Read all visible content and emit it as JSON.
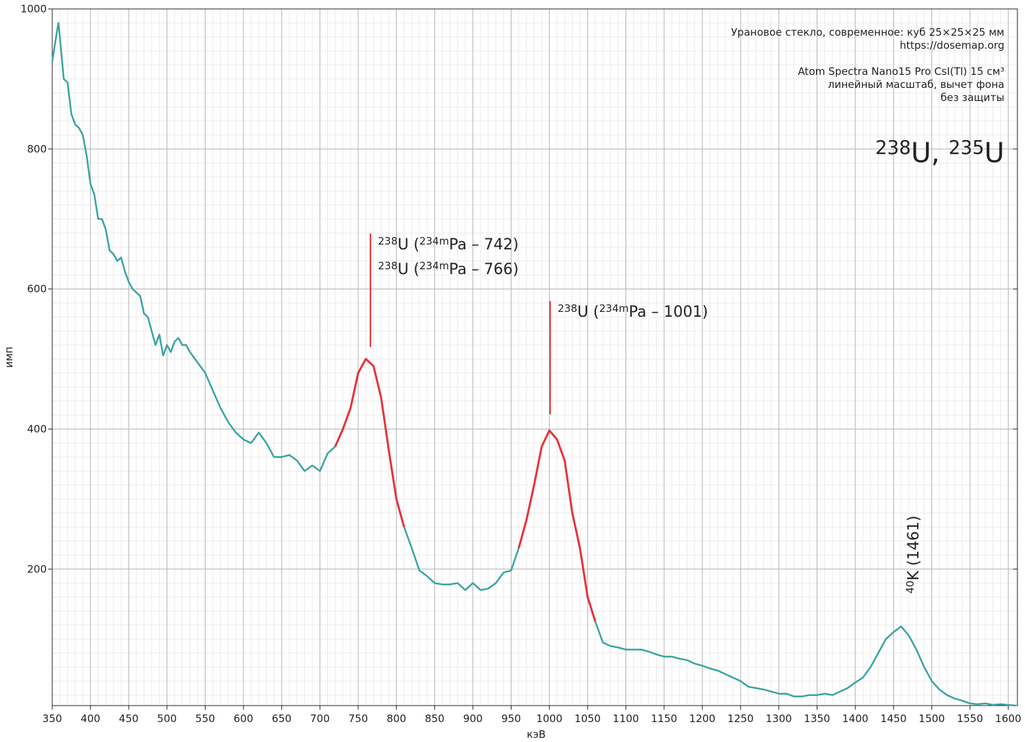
{
  "chart_data": {
    "type": "line",
    "title_parts": [
      {
        "sup": "238"
      },
      {
        "text": "U, "
      },
      {
        "sup": "235"
      },
      {
        "text": "U"
      }
    ],
    "info": [
      [
        "Урановое стекло, современное: куб 25×25×25 мм",
        "https://dosemap.org"
      ],
      [
        "Atom Spectra Nano15 Pro CsI(Tl) 15 см³",
        "линейный масштаб, вычет фона",
        "без защиты"
      ]
    ],
    "xlabel": "кэВ",
    "ylabel": "имп",
    "xlim": [
      350,
      1612
    ],
    "ylim": [
      5,
      1000
    ],
    "xticks": [
      350,
      400,
      450,
      500,
      550,
      600,
      650,
      700,
      750,
      800,
      850,
      900,
      950,
      1000,
      1050,
      1100,
      1150,
      1200,
      1250,
      1300,
      1350,
      1400,
      1450,
      1500,
      1550,
      1600
    ],
    "yticks": [
      200,
      400,
      600,
      800,
      1000
    ],
    "xminor": 10,
    "yminor": 20,
    "grid": true,
    "x": [
      350,
      355,
      358,
      360,
      365,
      370,
      375,
      380,
      385,
      390,
      395,
      400,
      405,
      410,
      415,
      420,
      425,
      430,
      435,
      440,
      445,
      450,
      455,
      460,
      465,
      470,
      475,
      480,
      485,
      490,
      495,
      500,
      505,
      510,
      515,
      520,
      525,
      530,
      540,
      550,
      560,
      570,
      580,
      590,
      600,
      610,
      620,
      630,
      640,
      650,
      660,
      670,
      680,
      690,
      700,
      710,
      720,
      730,
      740,
      750,
      760,
      770,
      780,
      790,
      800,
      810,
      820,
      830,
      840,
      850,
      860,
      870,
      880,
      890,
      900,
      910,
      920,
      930,
      940,
      950,
      960,
      970,
      980,
      990,
      1000,
      1010,
      1020,
      1030,
      1040,
      1050,
      1060,
      1070,
      1080,
      1090,
      1100,
      1110,
      1120,
      1130,
      1140,
      1150,
      1160,
      1170,
      1180,
      1190,
      1200,
      1210,
      1220,
      1230,
      1240,
      1250,
      1260,
      1270,
      1280,
      1290,
      1300,
      1310,
      1320,
      1330,
      1340,
      1350,
      1360,
      1370,
      1380,
      1390,
      1400,
      1410,
      1420,
      1430,
      1440,
      1450,
      1460,
      1470,
      1480,
      1490,
      1500,
      1510,
      1520,
      1530,
      1540,
      1550,
      1560,
      1570,
      1580,
      1590,
      1600,
      1610
    ],
    "series": [
      {
        "color": "#3aa3a3",
        "values": [
          925,
          960,
          980,
          960,
          900,
          895,
          850,
          835,
          830,
          820,
          790,
          750,
          735,
          700,
          700,
          685,
          655,
          650,
          640,
          645,
          625,
          610,
          600,
          595,
          590,
          565,
          560,
          540,
          520,
          535,
          505,
          520,
          510,
          525,
          530,
          520,
          520,
          510,
          495,
          480,
          455,
          430,
          410,
          395,
          385,
          380,
          395,
          380,
          360,
          360,
          363,
          355,
          340,
          348,
          340,
          365,
          375,
          400,
          430,
          480,
          500,
          490,
          445,
          370,
          300,
          260,
          230,
          198,
          190,
          180,
          178,
          178,
          180,
          170,
          180,
          170,
          172,
          180,
          195,
          198,
          230,
          270,
          320,
          375,
          398,
          385,
          355,
          280,
          230,
          160,
          125,
          95,
          90,
          88,
          85,
          85,
          85,
          82,
          78,
          75,
          75,
          72,
          70,
          65,
          62,
          58,
          55,
          50,
          45,
          40,
          32,
          30,
          28,
          25,
          22,
          22,
          18,
          18,
          20,
          20,
          22,
          20,
          25,
          30,
          38,
          45,
          60,
          80,
          100,
          110,
          118,
          105,
          85,
          60,
          40,
          28,
          20,
          15,
          12,
          8,
          7,
          8,
          6,
          7,
          6,
          5
        ]
      },
      {
        "color": "#e8323a",
        "values": [
          null,
          null,
          null,
          null,
          null,
          null,
          null,
          null,
          null,
          null,
          null,
          null,
          null,
          null,
          null,
          null,
          null,
          null,
          null,
          null,
          null,
          null,
          null,
          null,
          null,
          null,
          null,
          null,
          null,
          null,
          null,
          null,
          null,
          null,
          null,
          null,
          null,
          null,
          null,
          null,
          null,
          null,
          null,
          null,
          null,
          null,
          null,
          null,
          null,
          null,
          null,
          null,
          null,
          null,
          null,
          null,
          375,
          400,
          430,
          480,
          500,
          490,
          445,
          370,
          300,
          260,
          null,
          null,
          null,
          null,
          null,
          null,
          null,
          null,
          null,
          null,
          null,
          null,
          null,
          null,
          230,
          270,
          320,
          375,
          398,
          385,
          355,
          280,
          230,
          160,
          125,
          null,
          null,
          null,
          null,
          null,
          null,
          null,
          null,
          null,
          null,
          null,
          null,
          null,
          null,
          null,
          null,
          null,
          null,
          null,
          null,
          null,
          null,
          null,
          null,
          null,
          null,
          null,
          null,
          null,
          null,
          null,
          null,
          null,
          null,
          null,
          null,
          null,
          null,
          null,
          null,
          null,
          null,
          null,
          null,
          null,
          null,
          null,
          null,
          null,
          null,
          null,
          null,
          null,
          null,
          null
        ]
      }
    ],
    "annotations": [
      {
        "x": 766,
        "color": "#e8262b",
        "labels": [
          [
            {
              "sup": "238"
            },
            {
              "text": "U ("
            },
            {
              "sup": "234m"
            },
            {
              "text": "Pa – 742)"
            }
          ],
          [
            {
              "sup": "238"
            },
            {
              "text": "U ("
            },
            {
              "sup": "234m"
            },
            {
              "text": "Pa – 766)"
            }
          ]
        ]
      },
      {
        "x": 1001,
        "color": "#e8262b",
        "labels": [
          [
            {
              "sup": "238"
            },
            {
              "text": "U ("
            },
            {
              "sup": "234m"
            },
            {
              "text": "Pa – 1001)"
            }
          ]
        ]
      },
      {
        "x": 1461,
        "color": "#2a9a9a",
        "rotated": true,
        "labels": [
          [
            {
              "sup": "40"
            },
            {
              "text": "K (1461)"
            }
          ]
        ]
      }
    ]
  }
}
